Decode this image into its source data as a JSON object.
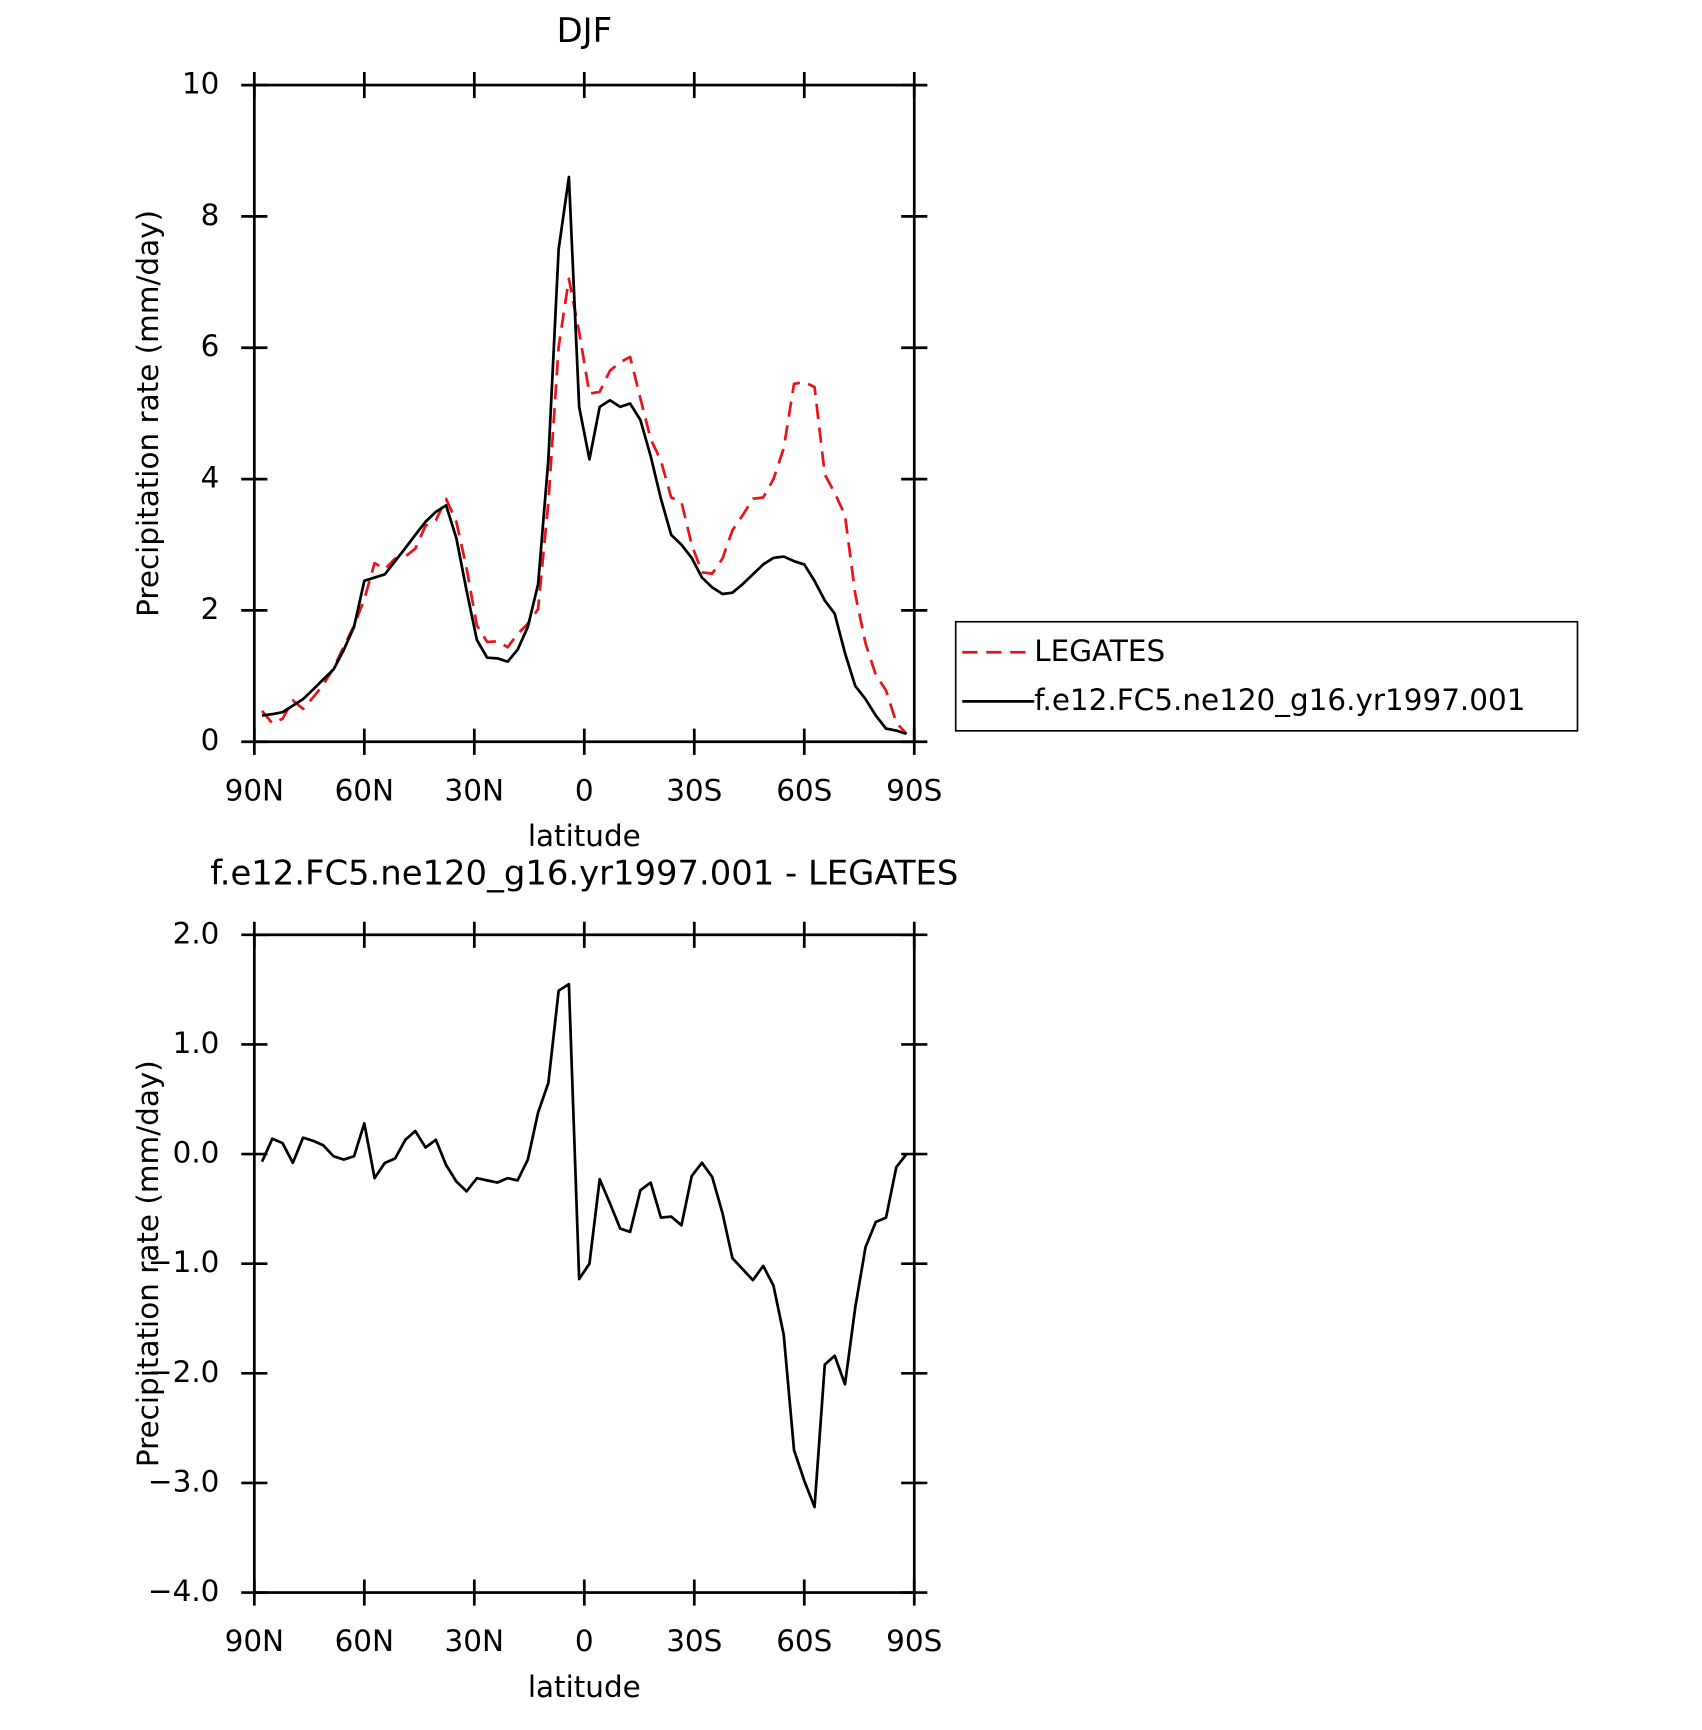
{
  "chart_data": [
    {
      "type": "line",
      "title": "DJF",
      "xlabel": "latitude",
      "ylabel": "Precipitation rate (mm/day)",
      "x": [
        87.9,
        85.1,
        82.3,
        79.5,
        76.7,
        73.9,
        71.2,
        68.4,
        65.6,
        62.8,
        60.0,
        57.2,
        54.4,
        51.6,
        48.8,
        46.1,
        43.3,
        40.5,
        37.7,
        34.9,
        32.1,
        29.3,
        26.5,
        23.7,
        20.9,
        18.2,
        15.4,
        12.6,
        9.8,
        7.0,
        4.2,
        1.4,
        -1.4,
        -4.2,
        -7.0,
        -9.8,
        -12.5,
        -15.3,
        -18.1,
        -20.9,
        -23.7,
        -26.5,
        -29.3,
        -32.1,
        -34.9,
        -37.7,
        -40.4,
        -43.2,
        -46.0,
        -48.8,
        -51.6,
        -54.4,
        -57.2,
        -60.0,
        -62.8,
        -65.6,
        -68.3,
        -71.1,
        -73.9,
        -76.7,
        -79.5,
        -82.3,
        -85.1,
        -87.9
      ],
      "series": [
        {
          "name": "LEGATES",
          "color": "#e8141c",
          "dash": "dashed",
          "values": [
            0.47,
            0.28,
            0.35,
            0.63,
            0.5,
            0.68,
            0.87,
            1.12,
            1.45,
            1.77,
            2.17,
            2.72,
            2.63,
            2.79,
            2.82,
            2.94,
            3.29,
            3.37,
            3.7,
            3.35,
            2.64,
            1.77,
            1.52,
            1.53,
            1.44,
            1.64,
            1.8,
            2.02,
            3.65,
            6.01,
            7.05,
            6.24,
            5.3,
            5.33,
            5.65,
            5.78,
            5.86,
            5.23,
            4.61,
            4.28,
            3.72,
            3.65,
            3.0,
            2.58,
            2.56,
            2.79,
            3.22,
            3.45,
            3.7,
            3.72,
            4.0,
            4.47,
            5.45,
            5.48,
            5.4,
            4.07,
            3.79,
            3.45,
            2.25,
            1.5,
            1.02,
            0.78,
            0.29,
            0.12
          ]
        },
        {
          "name": "f.e12.FC5.ne120_g16.yr1997.001",
          "color": "#000000",
          "dash": "solid",
          "values": [
            0.4,
            0.42,
            0.45,
            0.55,
            0.65,
            0.8,
            0.95,
            1.1,
            1.4,
            1.75,
            2.45,
            2.5,
            2.55,
            2.75,
            2.95,
            3.15,
            3.35,
            3.5,
            3.6,
            3.1,
            2.3,
            1.55,
            1.28,
            1.27,
            1.22,
            1.4,
            1.75,
            2.4,
            4.3,
            7.5,
            8.6,
            5.1,
            4.3,
            5.1,
            5.2,
            5.1,
            5.15,
            4.9,
            4.35,
            3.7,
            3.15,
            3.0,
            2.8,
            2.5,
            2.35,
            2.25,
            2.27,
            2.4,
            2.55,
            2.7,
            2.8,
            2.82,
            2.75,
            2.7,
            2.45,
            2.15,
            1.95,
            1.35,
            0.85,
            0.65,
            0.4,
            0.2,
            0.17,
            0.12
          ]
        }
      ],
      "xlim": [
        90,
        -90
      ],
      "xticks": [
        {
          "value": 90,
          "label": "90N"
        },
        {
          "value": 60,
          "label": "60N"
        },
        {
          "value": 30,
          "label": "30N"
        },
        0,
        {
          "value": -30,
          "label": "30S"
        },
        {
          "value": -60,
          "label": "60S"
        },
        {
          "value": -90,
          "label": "90S"
        }
      ],
      "ylim": [
        0,
        10
      ],
      "yticks": [
        0,
        2,
        4,
        6,
        8,
        10
      ],
      "legend": "right"
    },
    {
      "type": "line",
      "title": "f.e12.FC5.ne120_g16.yr1997.001 - LEGATES",
      "xlabel": "latitude",
      "ylabel": "Precipitation rate (mm/day)",
      "x": [
        87.9,
        85.1,
        82.3,
        79.5,
        76.7,
        73.9,
        71.2,
        68.4,
        65.6,
        62.8,
        60.0,
        57.2,
        54.4,
        51.6,
        48.8,
        46.1,
        43.3,
        40.5,
        37.7,
        34.9,
        32.1,
        29.3,
        26.5,
        23.7,
        20.9,
        18.2,
        15.4,
        12.6,
        9.8,
        7.0,
        4.2,
        1.4,
        -1.4,
        -4.2,
        -7.0,
        -9.8,
        -12.5,
        -15.3,
        -18.1,
        -20.9,
        -23.7,
        -26.5,
        -29.3,
        -32.1,
        -34.9,
        -37.7,
        -40.4,
        -43.2,
        -46.0,
        -48.8,
        -51.6,
        -54.4,
        -57.2,
        -60.0,
        -62.8,
        -65.6,
        -68.3,
        -71.1,
        -73.9,
        -76.7,
        -79.5,
        -82.3,
        -85.1,
        -87.9
      ],
      "series": [
        {
          "color": "#000000",
          "dash": "solid",
          "values": [
            -0.07,
            0.14,
            0.1,
            -0.08,
            0.15,
            0.12,
            0.08,
            -0.02,
            -0.05,
            -0.02,
            0.28,
            -0.22,
            -0.08,
            -0.04,
            0.13,
            0.21,
            0.06,
            0.13,
            -0.1,
            -0.25,
            -0.34,
            -0.22,
            -0.24,
            -0.26,
            -0.22,
            -0.24,
            -0.05,
            0.38,
            0.65,
            1.49,
            1.55,
            -1.14,
            -1.0,
            -0.23,
            -0.45,
            -0.68,
            -0.71,
            -0.33,
            -0.26,
            -0.58,
            -0.57,
            -0.65,
            -0.2,
            -0.08,
            -0.21,
            -0.54,
            -0.95,
            -1.05,
            -1.15,
            -1.02,
            -1.2,
            -1.65,
            -2.7,
            -2.98,
            -3.22,
            -1.92,
            -1.84,
            -2.1,
            -1.4,
            -0.85,
            -0.62,
            -0.58,
            -0.12,
            0.0
          ]
        }
      ],
      "xlim": [
        90,
        -90
      ],
      "xticks": [
        {
          "value": 90,
          "label": "90N"
        },
        {
          "value": 60,
          "label": "60N"
        },
        {
          "value": 30,
          "label": "30N"
        },
        0,
        {
          "value": -30,
          "label": "30S"
        },
        {
          "value": -60,
          "label": "60S"
        },
        {
          "value": -90,
          "label": "90S"
        }
      ],
      "ylim": [
        -4,
        2
      ],
      "yticks": [
        {
          "value": -4,
          "label": "−4.0"
        },
        {
          "value": -3,
          "label": "−3.0"
        },
        {
          "value": -2,
          "label": "−2.0"
        },
        {
          "value": -1,
          "label": "−1.0"
        },
        {
          "value": 0,
          "label": "0.0"
        },
        {
          "value": 1,
          "label": "1.0"
        },
        {
          "value": 2,
          "label": "2.0"
        }
      ]
    }
  ]
}
